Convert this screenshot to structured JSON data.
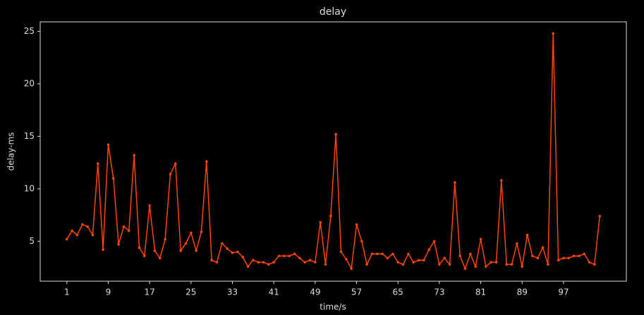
{
  "chart_data": {
    "type": "line",
    "title": "delay",
    "xlabel": "time/s",
    "ylabel": "delay-ms",
    "x": [
      1,
      2,
      3,
      4,
      5,
      6,
      7,
      8,
      9,
      10,
      11,
      12,
      13,
      14,
      15,
      16,
      17,
      18,
      19,
      20,
      21,
      22,
      23,
      24,
      25,
      26,
      27,
      28,
      29,
      30,
      31,
      32,
      33,
      34,
      35,
      36,
      37,
      38,
      39,
      40,
      41,
      42,
      43,
      44,
      45,
      46,
      47,
      48,
      49,
      50,
      51,
      52,
      53,
      54,
      55,
      56,
      57,
      58,
      59,
      60,
      61,
      62,
      63,
      64,
      65,
      66,
      67,
      68,
      69,
      70,
      71,
      72,
      73,
      74,
      75,
      76,
      77,
      78,
      79,
      80,
      81,
      82,
      83,
      84,
      85,
      86,
      87,
      88,
      89,
      90,
      91,
      92,
      93,
      94,
      95,
      96,
      97,
      98,
      99,
      100,
      101,
      102,
      103,
      104
    ],
    "series": [
      {
        "name": "delay",
        "color": "#ff4500",
        "values": [
          5.2,
          6.0,
          5.6,
          6.6,
          6.4,
          5.6,
          12.4,
          4.2,
          14.2,
          11.0,
          4.7,
          6.4,
          6.0,
          13.2,
          4.4,
          3.6,
          8.4,
          4.1,
          3.4,
          5.2,
          11.4,
          12.4,
          4.1,
          4.8,
          5.8,
          4.1,
          5.9,
          12.6,
          3.2,
          3.0,
          4.8,
          4.3,
          3.9,
          4.0,
          3.5,
          2.6,
          3.2,
          3.0,
          3.0,
          2.8,
          3.0,
          3.6,
          3.6,
          3.6,
          3.8,
          3.4,
          3.0,
          3.2,
          3.0,
          6.8,
          2.8,
          7.4,
          15.2,
          4.0,
          3.3,
          2.4,
          6.6,
          5.0,
          2.8,
          3.8,
          3.8,
          3.8,
          3.4,
          3.8,
          3.0,
          2.8,
          3.8,
          3.0,
          3.2,
          3.2,
          4.2,
          5.0,
          2.8,
          3.4,
          2.8,
          10.6,
          3.6,
          2.4,
          3.8,
          2.6,
          5.2,
          2.6,
          3.0,
          3.0,
          10.8,
          2.8,
          2.8,
          4.8,
          2.6,
          5.6,
          3.6,
          3.4,
          4.4,
          2.8,
          24.8,
          3.2,
          3.4,
          3.4,
          3.6,
          3.6,
          3.8,
          3.0,
          2.8,
          7.4
        ]
      }
    ],
    "xlim": [
      -4.15,
      109.15
    ],
    "ylim": [
      1.2,
      25.9
    ],
    "xticks": [
      1,
      9,
      17,
      25,
      33,
      41,
      49,
      57,
      65,
      73,
      81,
      89,
      97
    ],
    "yticks": [
      5,
      10,
      15,
      20,
      25
    ],
    "grid": false
  }
}
